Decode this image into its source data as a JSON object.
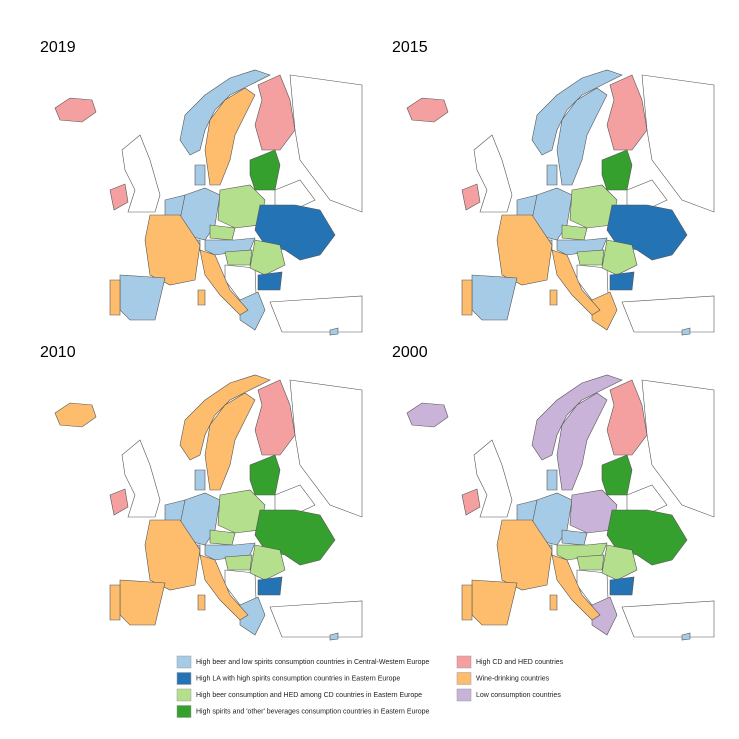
{
  "panels": [
    {
      "title": "2019"
    },
    {
      "title": "2015"
    },
    {
      "title": "2010"
    },
    {
      "title": "2000"
    }
  ],
  "legend": {
    "items": [
      {
        "label": "High beer and low spirits consumption countries in Central-Western Europe",
        "color": "#a6cbe6"
      },
      {
        "label": "High LA with high spirits consumption countries in Eastern Europe",
        "color": "#2474b5"
      },
      {
        "label": "High beer consumption and HED among CD countries in Eastern Europe",
        "color": "#b4df8c"
      },
      {
        "label": "High spirits and 'other' beverages consumption countries in Eastern Europe",
        "color": "#35a02e"
      },
      {
        "label": "High CD and HED countries",
        "color": "#f5a0a0"
      },
      {
        "label": "Wine-drinking countries",
        "color": "#fdbd6d"
      },
      {
        "label": "Low consumption countries",
        "color": "#c9b3d8"
      }
    ]
  }
}
